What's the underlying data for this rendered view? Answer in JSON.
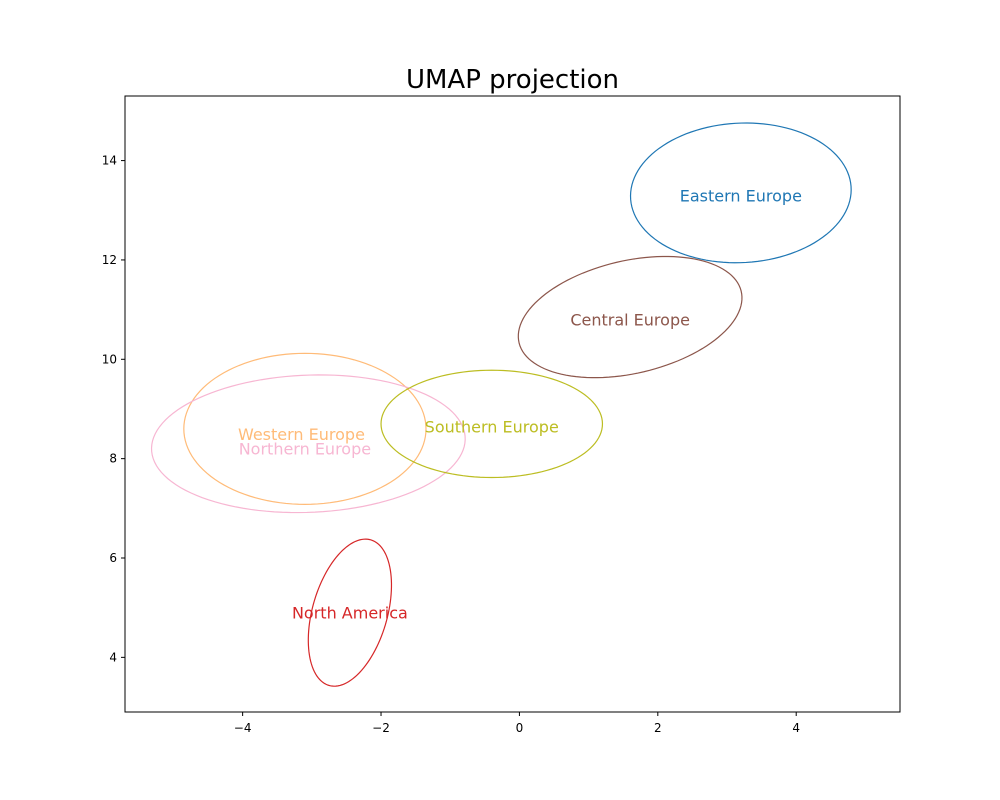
{
  "chart_data": {
    "type": "scatter",
    "title": "UMAP projection",
    "xlabel": "",
    "ylabel": "",
    "xlim": [
      -5.7,
      5.5
    ],
    "ylim": [
      2.9,
      15.3
    ],
    "grid": false,
    "x_ticks": [
      -4,
      -2,
      0,
      2,
      4
    ],
    "y_ticks": [
      4,
      6,
      8,
      10,
      12,
      14
    ],
    "tick_labels_x": [
      "−4",
      "−2",
      "0",
      "2",
      "4"
    ],
    "tick_labels_y": [
      "4",
      "6",
      "8",
      "10",
      "12",
      "14"
    ],
    "clusters": [
      {
        "name": "Eastern Europe",
        "color": "#1f77b4",
        "center": [
          3.2,
          13.35
        ],
        "rx": 1.6,
        "ry": 1.4,
        "angle": 10,
        "label_pos": [
          3.2,
          13.3
        ]
      },
      {
        "name": "Central Europe",
        "color": "#8c564b",
        "center": [
          1.6,
          10.85
        ],
        "rx": 1.7,
        "ry": 1.1,
        "angle": 24,
        "label_pos": [
          1.6,
          10.8
        ]
      },
      {
        "name": "Western Europe",
        "color": "#ffbb78",
        "center": [
          -3.1,
          8.6
        ],
        "rx": 1.75,
        "ry": 1.52,
        "angle": 0,
        "label_pos": [
          -3.15,
          8.5
        ]
      },
      {
        "name": "Northern Europe",
        "color": "#f7b6d2",
        "center": [
          -3.05,
          8.3
        ],
        "rx": 2.27,
        "ry": 1.38,
        "angle": 4,
        "label_pos": [
          -3.1,
          8.2
        ]
      },
      {
        "name": "Southern Europe",
        "color": "#bcbd22",
        "center": [
          -0.4,
          8.7
        ],
        "rx": 1.6,
        "ry": 1.08,
        "angle": 0,
        "label_pos": [
          -0.4,
          8.65
        ]
      },
      {
        "name": "North America",
        "color": "#d62728",
        "center": [
          -2.45,
          4.9
        ],
        "rx": 1.5,
        "ry": 0.55,
        "angle": 80,
        "label_pos": [
          -2.45,
          4.9
        ]
      }
    ]
  }
}
